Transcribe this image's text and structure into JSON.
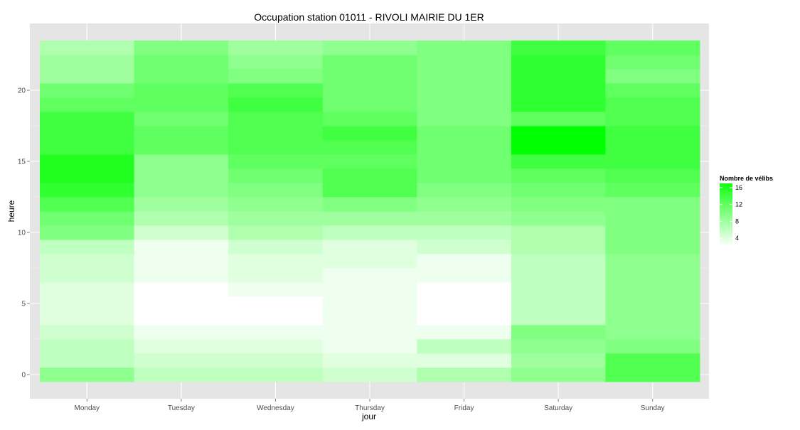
{
  "chart_data": {
    "type": "heatmap",
    "title": "Occupation station 01011 - RIVOLI MAIRIE DU 1ER",
    "xlabel": "jour",
    "ylabel": "heure",
    "categories": [
      "Monday",
      "Tuesday",
      "Wednesday",
      "Thursday",
      "Friday",
      "Saturday",
      "Sunday"
    ],
    "hours": [
      0,
      1,
      2,
      3,
      4,
      5,
      6,
      7,
      8,
      9,
      10,
      11,
      12,
      13,
      14,
      15,
      16,
      17,
      18,
      19,
      20,
      21,
      22,
      23
    ],
    "y_ticks": [
      0,
      5,
      10,
      15,
      20
    ],
    "ylim": [
      -0.5,
      23.5
    ],
    "grid": true,
    "values": [
      [
        9,
        6,
        6,
        5,
        7,
        9,
        13
      ],
      [
        6,
        5,
        5,
        4,
        4,
        8,
        13
      ],
      [
        6,
        4,
        4,
        3,
        6,
        9,
        10
      ],
      [
        5,
        3,
        3,
        3,
        3,
        10,
        9
      ],
      [
        4,
        2,
        2,
        3,
        2,
        6,
        9
      ],
      [
        4,
        2,
        2,
        3,
        2,
        6,
        9
      ],
      [
        4,
        2,
        3,
        3,
        2,
        6,
        9
      ],
      [
        5,
        3,
        4,
        3,
        3,
        6,
        9
      ],
      [
        5,
        3,
        4,
        4,
        3,
        6,
        9
      ],
      [
        6,
        3,
        5,
        4,
        5,
        7,
        10
      ],
      [
        10,
        5,
        7,
        6,
        6,
        7,
        10
      ],
      [
        11,
        7,
        8,
        8,
        8,
        9,
        10
      ],
      [
        13,
        8,
        9,
        10,
        9,
        10,
        10
      ],
      [
        15,
        9,
        10,
        13,
        10,
        11,
        12
      ],
      [
        16,
        9,
        11,
        13,
        11,
        12,
        13
      ],
      [
        16,
        9,
        12,
        12,
        11,
        14,
        14
      ],
      [
        14,
        12,
        13,
        13,
        11,
        18,
        14
      ],
      [
        14,
        12,
        13,
        14,
        11,
        18,
        14
      ],
      [
        14,
        11,
        13,
        12,
        10,
        12,
        13
      ],
      [
        12,
        12,
        14,
        11,
        10,
        15,
        13
      ],
      [
        11,
        12,
        13,
        11,
        10,
        15,
        12
      ],
      [
        8,
        11,
        10,
        11,
        10,
        15,
        10
      ],
      [
        8,
        11,
        9,
        11,
        10,
        15,
        11
      ],
      [
        7,
        10,
        8,
        9,
        10,
        14,
        12
      ]
    ],
    "color_scale": {
      "low": "#ffffff",
      "high": "#00ff00",
      "min": 2,
      "max": 18
    },
    "legend": {
      "title": "Nombre de vélibs",
      "ticks": [
        4,
        8,
        12,
        16
      ],
      "placement": "right"
    }
  }
}
